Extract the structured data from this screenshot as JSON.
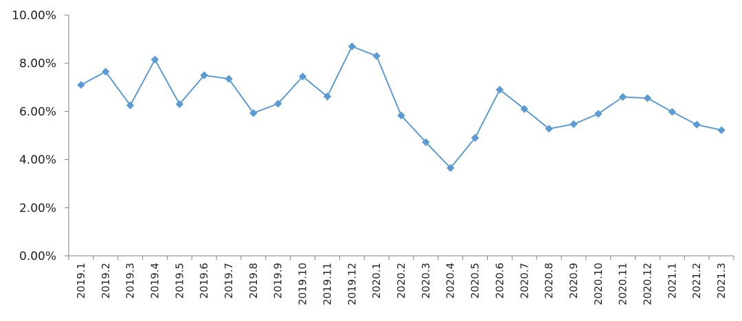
{
  "chart_data": {
    "type": "line",
    "title": "",
    "xlabel": "",
    "ylabel": "",
    "ylim": [
      0,
      10
    ],
    "y_ticks": [
      "0.00%",
      "2.00%",
      "4.00%",
      "6.00%",
      "8.00%",
      "10.00%"
    ],
    "y_tick_values": [
      0,
      2,
      4,
      6,
      8,
      10
    ],
    "grid": false,
    "legend": "none",
    "marker": "diamond",
    "colors": {
      "series": "#5B9BD5",
      "axis": "#7f7f7f"
    },
    "categories": [
      "2019.1",
      "2019.2",
      "2019.3",
      "2019.4",
      "2019.5",
      "2019.6",
      "2019.7",
      "2019.8",
      "2019.9",
      "2019.10",
      "2019.11",
      "2019.12",
      "2020.1",
      "2020.2",
      "2020.3",
      "2020.4",
      "2020.5",
      "2020.6",
      "2020.7",
      "2020.8",
      "2020.9",
      "2020.10",
      "2020.11",
      "2020.12",
      "2021.1",
      "2021.2",
      "2021.3"
    ],
    "series": [
      {
        "values": [
          7.1,
          7.65,
          6.25,
          8.15,
          6.3,
          7.5,
          7.35,
          5.93,
          6.32,
          7.45,
          6.62,
          8.7,
          8.3,
          5.83,
          4.72,
          3.65,
          4.9,
          6.9,
          6.1,
          5.28,
          5.47,
          5.9,
          6.6,
          6.55,
          5.98,
          5.45,
          5.22
        ]
      }
    ]
  }
}
